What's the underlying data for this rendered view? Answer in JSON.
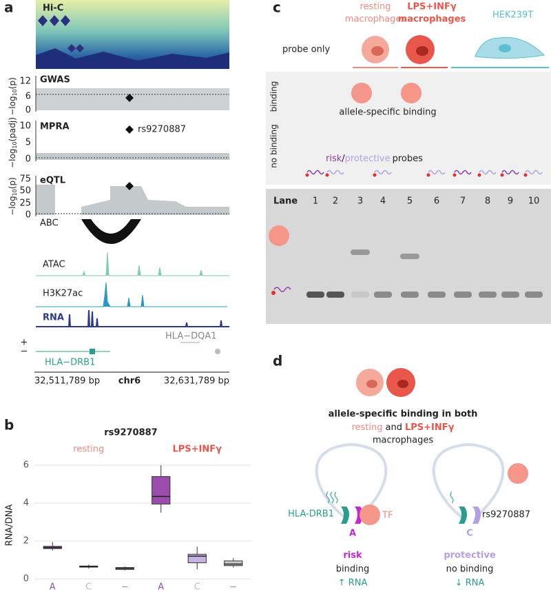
{
  "panel_a": {
    "label": "a",
    "hic": "Hi-C",
    "gwas": {
      "title": "GWAS",
      "ylabel": [
        "−log",
        "10",
        "(p)"
      ],
      "yticks": [
        "12",
        "6",
        "0"
      ]
    },
    "mpra": {
      "title": "MPRA",
      "ylabel": [
        "−log",
        "10",
        "(padj)"
      ],
      "yticks": [
        "10",
        "5",
        "0"
      ],
      "snp": "rs9270887"
    },
    "eqtl": {
      "title": "eQTL",
      "ylabel": [
        "−log",
        "10",
        "(p)"
      ],
      "yticks": [
        "75",
        "50",
        "25",
        "0"
      ]
    },
    "abc": "ABC",
    "tracks": [
      "ATAC",
      "H3K27ac",
      "RNA"
    ],
    "strands": [
      "+",
      "−"
    ],
    "genes": [
      "HLA−DQA1",
      "HLA−DRB1"
    ],
    "coords": [
      "32,511,789 bp",
      "chr6",
      "32,631,789 bp"
    ]
  },
  "panel_b": {
    "label": "b",
    "chart_data": {
      "type": "box",
      "title": "rs9270887",
      "ylabel": "RNA/DNA",
      "groups": [
        "resting",
        "LPS+INFγ"
      ],
      "group_colors": [
        "#f08a7e",
        "#e8574a"
      ],
      "categories": [
        "A",
        "C",
        "−",
        "A",
        "C",
        "−"
      ],
      "boxes": [
        {
          "min": 1.5,
          "q1": 1.6,
          "median": 1.65,
          "q3": 1.72,
          "max": 1.95,
          "color": "#9b4dae"
        },
        {
          "min": 0.55,
          "q1": 0.62,
          "median": 0.65,
          "q3": 0.68,
          "max": 0.75,
          "color": "#c7b3e3"
        },
        {
          "min": 0.45,
          "q1": 0.5,
          "median": 0.55,
          "q3": 0.6,
          "max": 0.65,
          "color": "#c9c9c9"
        },
        {
          "min": 3.5,
          "q1": 3.95,
          "median": 4.35,
          "q3": 5.4,
          "max": 6.0,
          "color": "#9b4dae"
        },
        {
          "min": 0.5,
          "q1": 0.85,
          "median": 1.2,
          "q3": 1.3,
          "max": 1.7,
          "color": "#c7b3e3"
        },
        {
          "min": 0.6,
          "q1": 0.7,
          "median": 0.78,
          "q3": 0.95,
          "max": 1.1,
          "color": "#c9c9c9"
        }
      ],
      "ylim": [
        0,
        6.4
      ],
      "yticks": [
        0,
        2,
        4,
        6
      ],
      "grid": true
    }
  },
  "panel_c": {
    "label": "c",
    "resting": [
      "resting",
      "macrophages"
    ],
    "lps": [
      "LPS+INFγ",
      "macrophages"
    ],
    "hek": "HEK239T",
    "probe_only": "probe only",
    "binding": "binding",
    "no_binding": "no binding",
    "allele_specific": "allele-specific binding",
    "probes": [
      "risk",
      "/",
      "protective",
      "probes"
    ],
    "lane": "Lane",
    "lanes": [
      "1",
      "2",
      "3",
      "4",
      "5",
      "6",
      "7",
      "8",
      "9",
      "10"
    ]
  },
  "panel_d": {
    "label": "d",
    "caption": [
      "allele-specific binding in both",
      "resting",
      "and",
      "LPS+INFγ",
      "macrophages"
    ],
    "gene": "HLA-DRB1",
    "tf": "TF",
    "alleles": [
      "A",
      "C"
    ],
    "snp": "rs9270887",
    "risk": [
      "risk",
      "binding",
      "↑ RNA"
    ],
    "protective": [
      "protective",
      "no binding",
      "↓ RNA"
    ]
  }
}
